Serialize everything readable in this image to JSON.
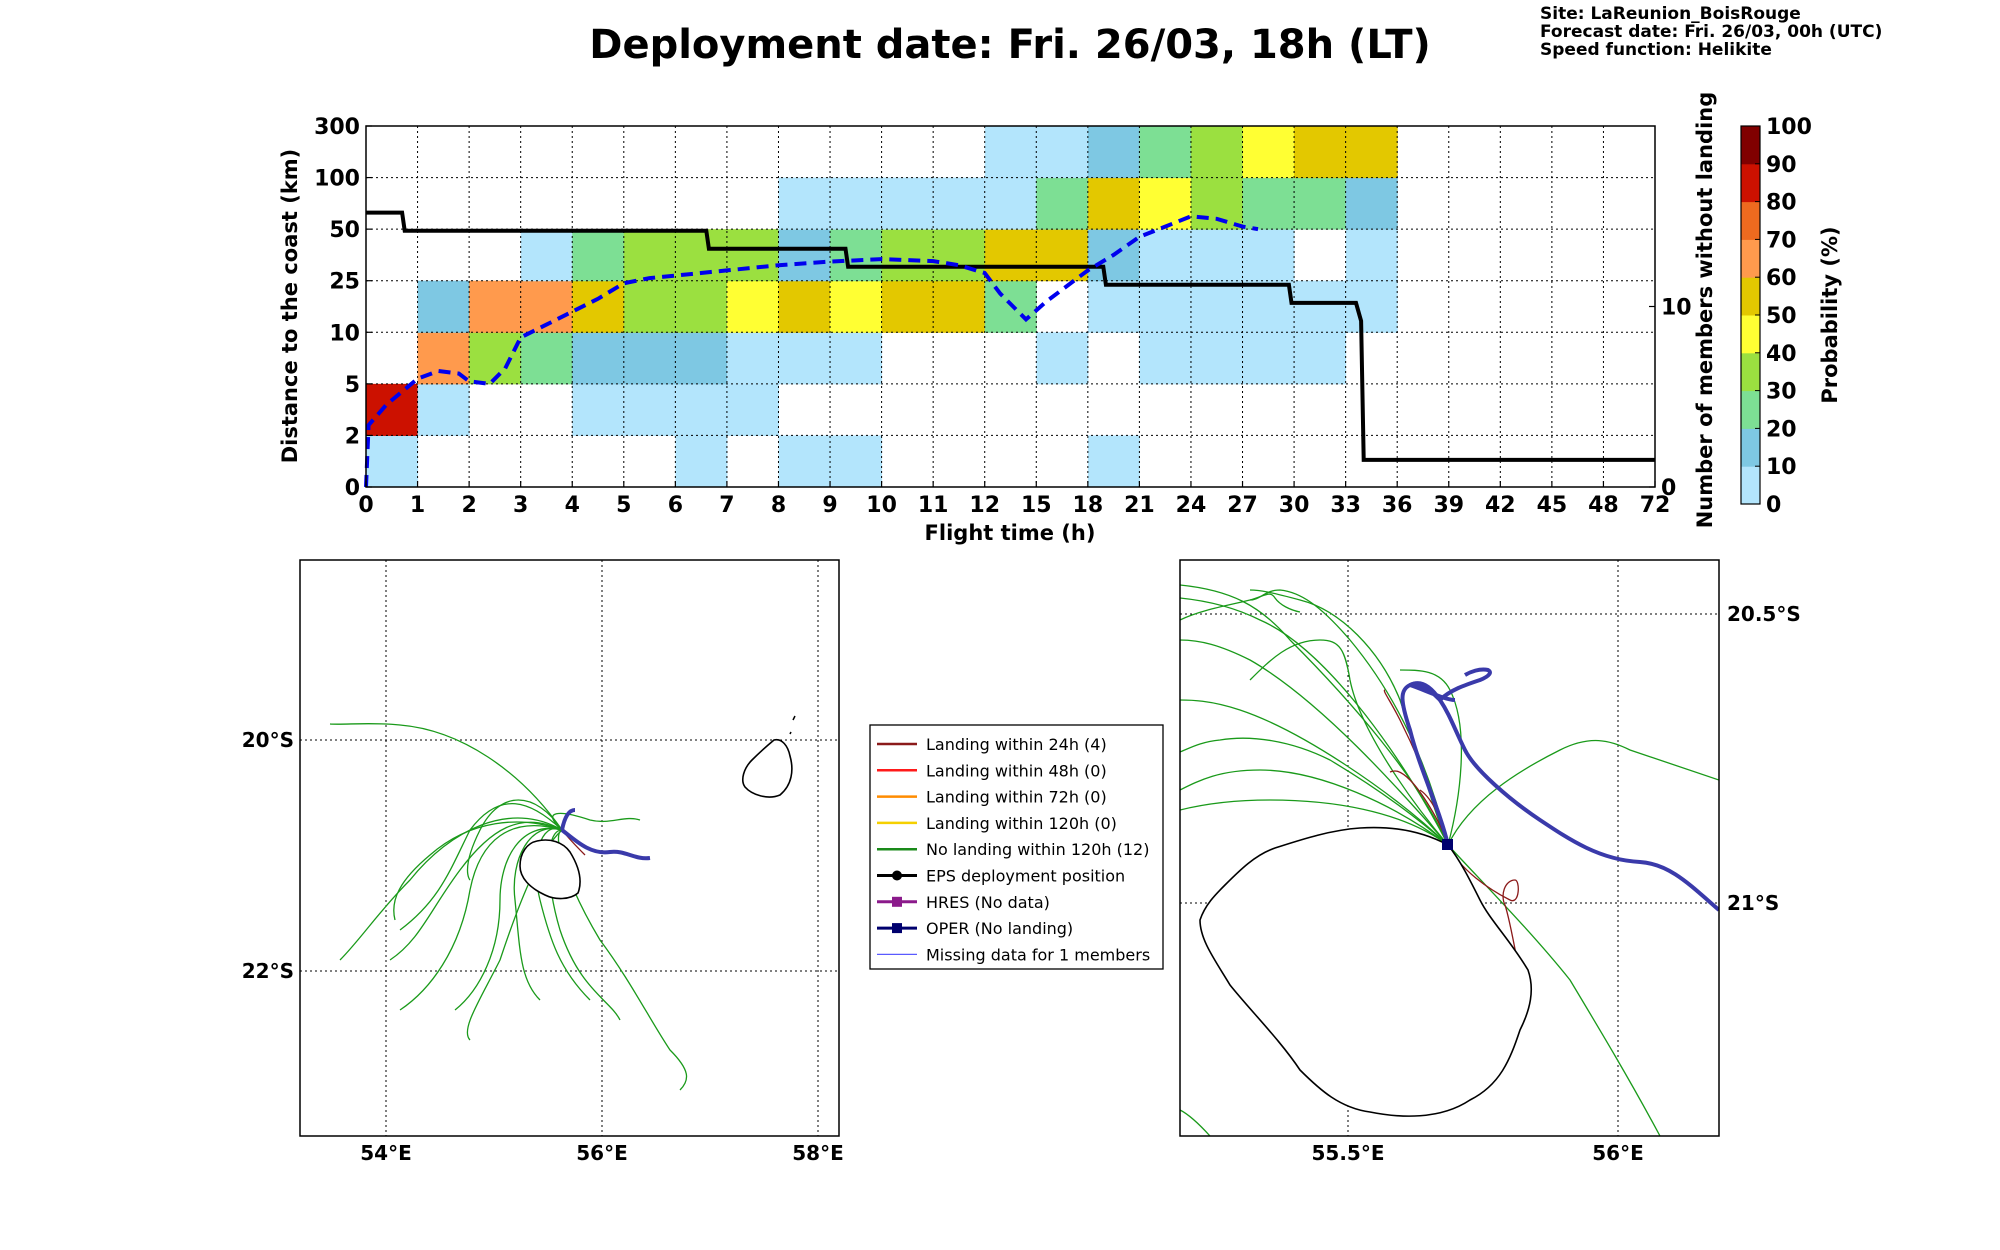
{
  "title": "Deployment date: Fri. 26/03, 18h (LT)",
  "info": {
    "site": "Site: LaReunion_BoisRouge",
    "forecast": "Forecast date: Fri. 26/03, 00h (UTC)",
    "speed": "Speed function: Helikite"
  },
  "chart_data": [
    {
      "type": "heatmap",
      "xlabel": "Flight time (h)",
      "ylabel": "Distance to the coast (km)",
      "y2label": "Number of members without landing",
      "x_tick_labels": [
        "0",
        "1",
        "2",
        "3",
        "4",
        "5",
        "6",
        "7",
        "8",
        "9",
        "10",
        "11",
        "12",
        "15",
        "18",
        "21",
        "24",
        "27",
        "30",
        "33",
        "36",
        "39",
        "42",
        "45",
        "48",
        "72"
      ],
      "y_tick_labels": [
        "0",
        "2",
        "5",
        "10",
        "25",
        "50",
        "100",
        "300"
      ],
      "y2_ticks": [
        {
          "value": 0,
          "label": "0"
        },
        {
          "value": 10,
          "label": "10"
        }
      ],
      "y2_max": 20,
      "grid": true,
      "colorbar": {
        "label": "Probability (%)",
        "ticks": [
          "0",
          "10",
          "20",
          "30",
          "40",
          "50",
          "60",
          "70",
          "80",
          "90",
          "100"
        ],
        "colors": [
          "#b3e5fc",
          "#7ec8e3",
          "#7ddf94",
          "#9be040",
          "#ffff33",
          "#e3c800",
          "#ff9a4d",
          "#ee6a1f",
          "#cc1100",
          "#800000"
        ]
      },
      "cells": [
        [
          0,
          0,
          "#b3e5fc"
        ],
        [
          0,
          1,
          "#cc1100"
        ],
        [
          1,
          1,
          "#b3e5fc"
        ],
        [
          1,
          2,
          "#ff9a4d"
        ],
        [
          1,
          3,
          "#7ec8e3"
        ],
        [
          2,
          2,
          "#9be040"
        ],
        [
          2,
          3,
          "#ff9a4d"
        ],
        [
          3,
          2,
          "#7ddf94"
        ],
        [
          3,
          3,
          "#ff9a4d"
        ],
        [
          3,
          4,
          "#b3e5fc"
        ],
        [
          4,
          1,
          "#b3e5fc"
        ],
        [
          4,
          2,
          "#7ec8e3"
        ],
        [
          4,
          3,
          "#e3c800"
        ],
        [
          4,
          4,
          "#7ddf94"
        ],
        [
          5,
          1,
          "#b3e5fc"
        ],
        [
          5,
          2,
          "#7ec8e3"
        ],
        [
          5,
          3,
          "#9be040"
        ],
        [
          5,
          4,
          "#9be040"
        ],
        [
          6,
          0,
          "#b3e5fc"
        ],
        [
          6,
          1,
          "#b3e5fc"
        ],
        [
          6,
          2,
          "#7ec8e3"
        ],
        [
          6,
          3,
          "#9be040"
        ],
        [
          6,
          4,
          "#9be040"
        ],
        [
          7,
          1,
          "#b3e5fc"
        ],
        [
          7,
          2,
          "#b3e5fc"
        ],
        [
          7,
          3,
          "#ffff33"
        ],
        [
          7,
          4,
          "#9be040"
        ],
        [
          8,
          0,
          "#b3e5fc"
        ],
        [
          8,
          2,
          "#b3e5fc"
        ],
        [
          8,
          3,
          "#e3c800"
        ],
        [
          8,
          4,
          "#7ec8e3"
        ],
        [
          8,
          5,
          "#b3e5fc"
        ],
        [
          9,
          0,
          "#b3e5fc"
        ],
        [
          9,
          2,
          "#b3e5fc"
        ],
        [
          9,
          3,
          "#ffff33"
        ],
        [
          9,
          4,
          "#7ddf94"
        ],
        [
          9,
          5,
          "#b3e5fc"
        ],
        [
          10,
          3,
          "#e3c800"
        ],
        [
          10,
          4,
          "#9be040"
        ],
        [
          10,
          5,
          "#b3e5fc"
        ],
        [
          11,
          3,
          "#e3c800"
        ],
        [
          11,
          4,
          "#9be040"
        ],
        [
          11,
          5,
          "#b3e5fc"
        ],
        [
          12,
          3,
          "#7ddf94"
        ],
        [
          12,
          4,
          "#e3c800"
        ],
        [
          12,
          5,
          "#b3e5fc"
        ],
        [
          12,
          6,
          "#b3e5fc"
        ],
        [
          13,
          2,
          "#b3e5fc"
        ],
        [
          13,
          4,
          "#e3c800"
        ],
        [
          13,
          5,
          "#7ddf94"
        ],
        [
          13,
          6,
          "#b3e5fc"
        ],
        [
          14,
          0,
          "#b3e5fc"
        ],
        [
          14,
          3,
          "#b3e5fc"
        ],
        [
          14,
          4,
          "#7ec8e3"
        ],
        [
          14,
          5,
          "#e3c800"
        ],
        [
          14,
          6,
          "#7ec8e3"
        ],
        [
          15,
          2,
          "#b3e5fc"
        ],
        [
          15,
          3,
          "#b3e5fc"
        ],
        [
          15,
          4,
          "#b3e5fc"
        ],
        [
          15,
          5,
          "#ffff33"
        ],
        [
          15,
          6,
          "#7ddf94"
        ],
        [
          16,
          2,
          "#b3e5fc"
        ],
        [
          16,
          3,
          "#b3e5fc"
        ],
        [
          16,
          4,
          "#b3e5fc"
        ],
        [
          16,
          5,
          "#9be040"
        ],
        [
          16,
          6,
          "#9be040"
        ],
        [
          17,
          2,
          "#b3e5fc"
        ],
        [
          17,
          3,
          "#b3e5fc"
        ],
        [
          17,
          4,
          "#b3e5fc"
        ],
        [
          17,
          5,
          "#7ddf94"
        ],
        [
          17,
          6,
          "#ffff33"
        ],
        [
          18,
          2,
          "#b3e5fc"
        ],
        [
          18,
          3,
          "#b3e5fc"
        ],
        [
          18,
          5,
          "#7ddf94"
        ],
        [
          18,
          6,
          "#e3c800"
        ],
        [
          19,
          3,
          "#b3e5fc"
        ],
        [
          19,
          4,
          "#b3e5fc"
        ],
        [
          19,
          5,
          "#7ec8e3"
        ],
        [
          19,
          6,
          "#e3c800"
        ]
      ],
      "series": [
        {
          "name": "",
          "axis": "right",
          "style": "step",
          "color": "#000000",
          "points": [
            [
              0,
              15.2
            ],
            [
              0.7,
              15.2
            ],
            [
              0.75,
              14.2
            ],
            [
              6.6,
              14.2
            ],
            [
              6.65,
              13.2
            ],
            [
              9.3,
              13.2
            ],
            [
              9.35,
              12.2
            ],
            [
              14.3,
              12.2
            ],
            [
              14.35,
              11.2
            ],
            [
              17.9,
              11.2
            ],
            [
              17.95,
              10.2
            ],
            [
              19.2,
              10.2
            ],
            [
              19.3,
              9.2
            ],
            [
              19.35,
              1.5
            ],
            [
              25,
              1.5
            ]
          ]
        },
        {
          "name": "",
          "axis": "left",
          "style": "dashed",
          "color": "#0000ee",
          "points": [
            [
              0,
              0
            ],
            [
              0.05,
              1.2
            ],
            [
              0.4,
              1.6
            ],
            [
              1,
              2.1
            ],
            [
              1.4,
              2.25
            ],
            [
              1.8,
              2.2
            ],
            [
              2,
              2.05
            ],
            [
              2.4,
              2.0
            ],
            [
              2.7,
              2.3
            ],
            [
              3,
              2.9
            ],
            [
              3.5,
              3.15
            ],
            [
              4,
              3.4
            ],
            [
              4.5,
              3.65
            ],
            [
              5,
              3.95
            ],
            [
              5.5,
              4.05
            ],
            [
              6,
              4.1
            ],
            [
              7,
              4.2
            ],
            [
              8,
              4.3
            ],
            [
              9,
              4.37
            ],
            [
              10,
              4.42
            ],
            [
              11,
              4.38
            ],
            [
              11.5,
              4.3
            ],
            [
              12,
              4.15
            ],
            [
              12.3,
              3.75
            ],
            [
              12.8,
              3.25
            ],
            [
              13.2,
              3.6
            ],
            [
              14,
              4.2
            ],
            [
              14.5,
              4.5
            ],
            [
              15,
              4.85
            ],
            [
              15.5,
              5.05
            ],
            [
              16,
              5.25
            ],
            [
              16.5,
              5.2
            ],
            [
              17,
              5.05
            ],
            [
              17.3,
              5.0
            ]
          ]
        }
      ]
    },
    {
      "type": "map",
      "x_tick_labels": [
        "54°E",
        "56°E",
        "58°E"
      ],
      "y_tick_labels": [
        "20°S",
        "22°S"
      ],
      "xlim": [
        53.2,
        58.2
      ],
      "ylim": [
        -23.5,
        -18.5
      ]
    },
    {
      "type": "map",
      "x_tick_labels": [
        "55.5°E",
        "56°E"
      ],
      "y_tick_labels": [
        "20.5°S",
        "21°S"
      ],
      "xlim": [
        55.2,
        56.2
      ],
      "ylim": [
        -21.4,
        -20.4
      ]
    }
  ],
  "legend": [
    {
      "label": "Landing within 24h (4)",
      "color": "#8b1a1a",
      "marker": "line"
    },
    {
      "label": "Landing within 48h (0)",
      "color": "#ff1a1a",
      "marker": "line"
    },
    {
      "label": "Landing within 72h (0)",
      "color": "#ff8c00",
      "marker": "line"
    },
    {
      "label": "Landing within 120h (0)",
      "color": "#f5d000",
      "marker": "line"
    },
    {
      "label": "No landing within 120h (12)",
      "color": "#1a8a1a",
      "marker": "line"
    },
    {
      "label": "EPS deployment position",
      "color": "#000000",
      "marker": "circle"
    },
    {
      "label": "HRES (No data)",
      "color": "#8b1a8b",
      "marker": "square"
    },
    {
      "label": "OPER (No landing)",
      "color": "#00006e",
      "marker": "square"
    },
    {
      "label": "Missing data for 1 members",
      "color": "#5a5aff",
      "marker": "thin"
    }
  ]
}
